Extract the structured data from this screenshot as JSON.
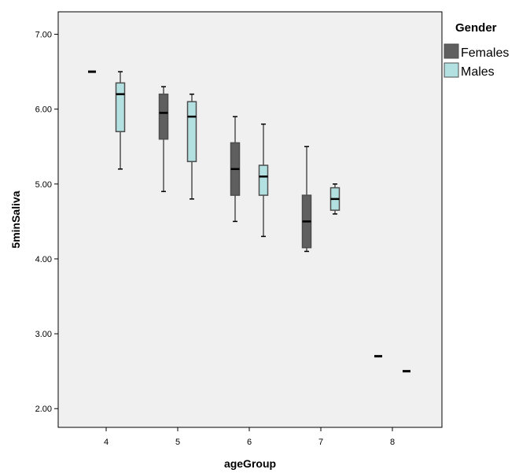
{
  "chart_data": {
    "type": "boxplot",
    "xlabel": "ageGroup",
    "ylabel": "5minSaliva",
    "categories": [
      "4",
      "5",
      "6",
      "7",
      "8"
    ],
    "y_ticks": [
      "2.00",
      "3.00",
      "4.00",
      "5.00",
      "6.00",
      "7.00"
    ],
    "ylim": [
      1.75,
      7.3
    ],
    "legend_title": "Gender",
    "legend_position": "top-right, outside plot",
    "series": [
      {
        "name": "Females",
        "color": "#5f5f5f",
        "boxes": [
          {
            "category": "4",
            "min": 6.5,
            "q1": 6.5,
            "median": 6.5,
            "q3": 6.5,
            "max": 6.5
          },
          {
            "category": "5",
            "min": 4.9,
            "q1": 5.6,
            "median": 5.95,
            "q3": 6.2,
            "max": 6.3
          },
          {
            "category": "6",
            "min": 4.5,
            "q1": 4.85,
            "median": 5.2,
            "q3": 5.55,
            "max": 5.9
          },
          {
            "category": "7",
            "min": 4.1,
            "q1": 4.15,
            "median": 4.5,
            "q3": 4.85,
            "max": 5.5
          },
          {
            "category": "8",
            "min": 2.7,
            "q1": 2.7,
            "median": 2.7,
            "q3": 2.7,
            "max": 2.7
          }
        ]
      },
      {
        "name": "Males",
        "color": "#b3e1e1",
        "boxes": [
          {
            "category": "4",
            "min": 5.2,
            "q1": 5.7,
            "median": 6.2,
            "q3": 6.35,
            "max": 6.5
          },
          {
            "category": "5",
            "min": 4.8,
            "q1": 5.3,
            "median": 5.9,
            "q3": 6.1,
            "max": 6.2
          },
          {
            "category": "6",
            "min": 4.3,
            "q1": 4.85,
            "median": 5.1,
            "q3": 5.25,
            "max": 5.8
          },
          {
            "category": "7",
            "min": 4.6,
            "q1": 4.65,
            "median": 4.8,
            "q3": 4.95,
            "max": 5.0
          },
          {
            "category": "8",
            "min": 2.5,
            "q1": 2.5,
            "median": 2.5,
            "q3": 2.5,
            "max": 2.5
          }
        ]
      }
    ],
    "colors": {
      "plot_background": "#f0f0f0",
      "box_outline": "#4d4d4d",
      "median": "#000000"
    }
  }
}
